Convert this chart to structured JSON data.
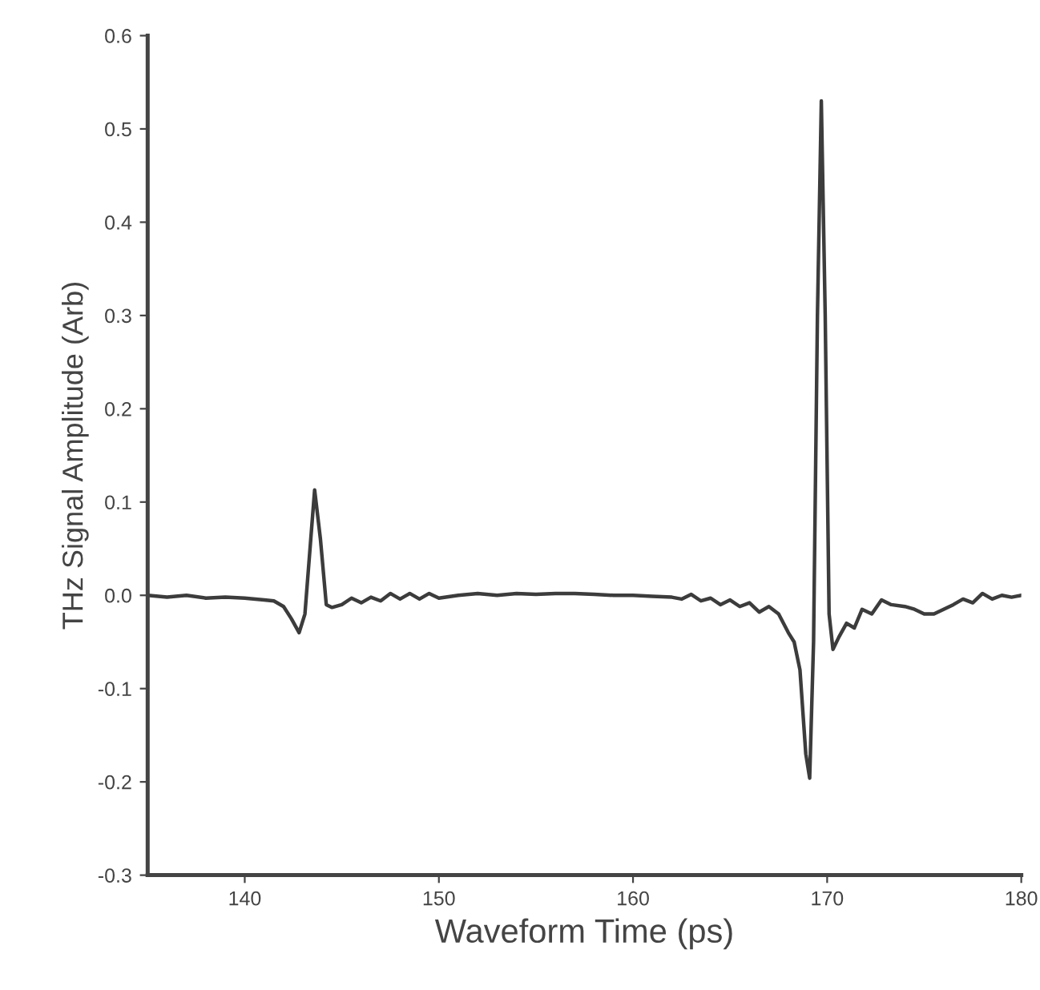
{
  "chart_data": {
    "type": "line",
    "xlabel": "Waveform Time (ps)",
    "ylabel": "THz Signal Amplitude (Arb)",
    "series": [
      {
        "color": "#3c3c3c",
        "x": [
          135,
          136,
          137,
          138,
          139,
          140,
          141,
          141.5,
          142,
          142.4,
          142.8,
          143.1,
          143.4,
          143.6,
          143.9,
          144.2,
          144.5,
          145,
          145.5,
          146,
          146.5,
          147,
          147.5,
          148,
          148.5,
          149,
          149.5,
          150,
          151,
          152,
          153,
          154,
          155,
          156,
          157,
          158,
          159,
          160,
          161,
          162,
          162.5,
          163,
          163.5,
          164,
          164.5,
          165,
          165.5,
          166,
          166.5,
          167,
          167.5,
          168,
          168.3,
          168.6,
          168.9,
          169.1,
          169.3,
          169.5,
          169.7,
          169.9,
          170.1,
          170.3,
          170.6,
          171,
          171.4,
          171.8,
          172.3,
          172.8,
          173.3,
          174,
          174.5,
          175,
          175.5,
          176,
          176.5,
          177,
          177.5,
          178,
          178.5,
          179,
          179.5,
          180
        ],
        "values": [
          0,
          -0.002,
          0,
          -0.003,
          -0.002,
          -0.003,
          -0.005,
          -0.006,
          -0.012,
          -0.025,
          -0.04,
          -0.02,
          0.06,
          0.113,
          0.06,
          -0.01,
          -0.013,
          -0.01,
          -0.003,
          -0.008,
          -0.002,
          -0.006,
          0.002,
          -0.004,
          0.002,
          -0.004,
          0.002,
          -0.003,
          0,
          0.002,
          0,
          0.002,
          0.001,
          0.002,
          0.002,
          0.001,
          0,
          0,
          -0.001,
          -0.002,
          -0.004,
          0.001,
          -0.006,
          -0.003,
          -0.01,
          -0.005,
          -0.012,
          -0.008,
          -0.018,
          -0.012,
          -0.02,
          -0.04,
          -0.05,
          -0.08,
          -0.17,
          -0.196,
          -0.05,
          0.3,
          0.53,
          0.3,
          -0.02,
          -0.058,
          -0.045,
          -0.03,
          -0.035,
          -0.015,
          -0.02,
          -0.005,
          -0.01,
          -0.012,
          -0.015,
          -0.02,
          -0.02,
          -0.015,
          -0.01,
          -0.004,
          -0.008,
          0.002,
          -0.004,
          0,
          -0.002,
          0
        ]
      }
    ],
    "xlim": [
      135,
      180
    ],
    "xticks": [
      140,
      150,
      160,
      170,
      180
    ],
    "ylim": [
      -0.3,
      0.6
    ],
    "yticks": [
      -0.3,
      -0.2,
      -0.1,
      {
        "value": 0,
        "label": "0.0"
      },
      0.1,
      0.2,
      0.3,
      0.4,
      0.5,
      0.6
    ],
    "grid": false,
    "legend": false,
    "marker": "none",
    "line_style": "solid"
  }
}
